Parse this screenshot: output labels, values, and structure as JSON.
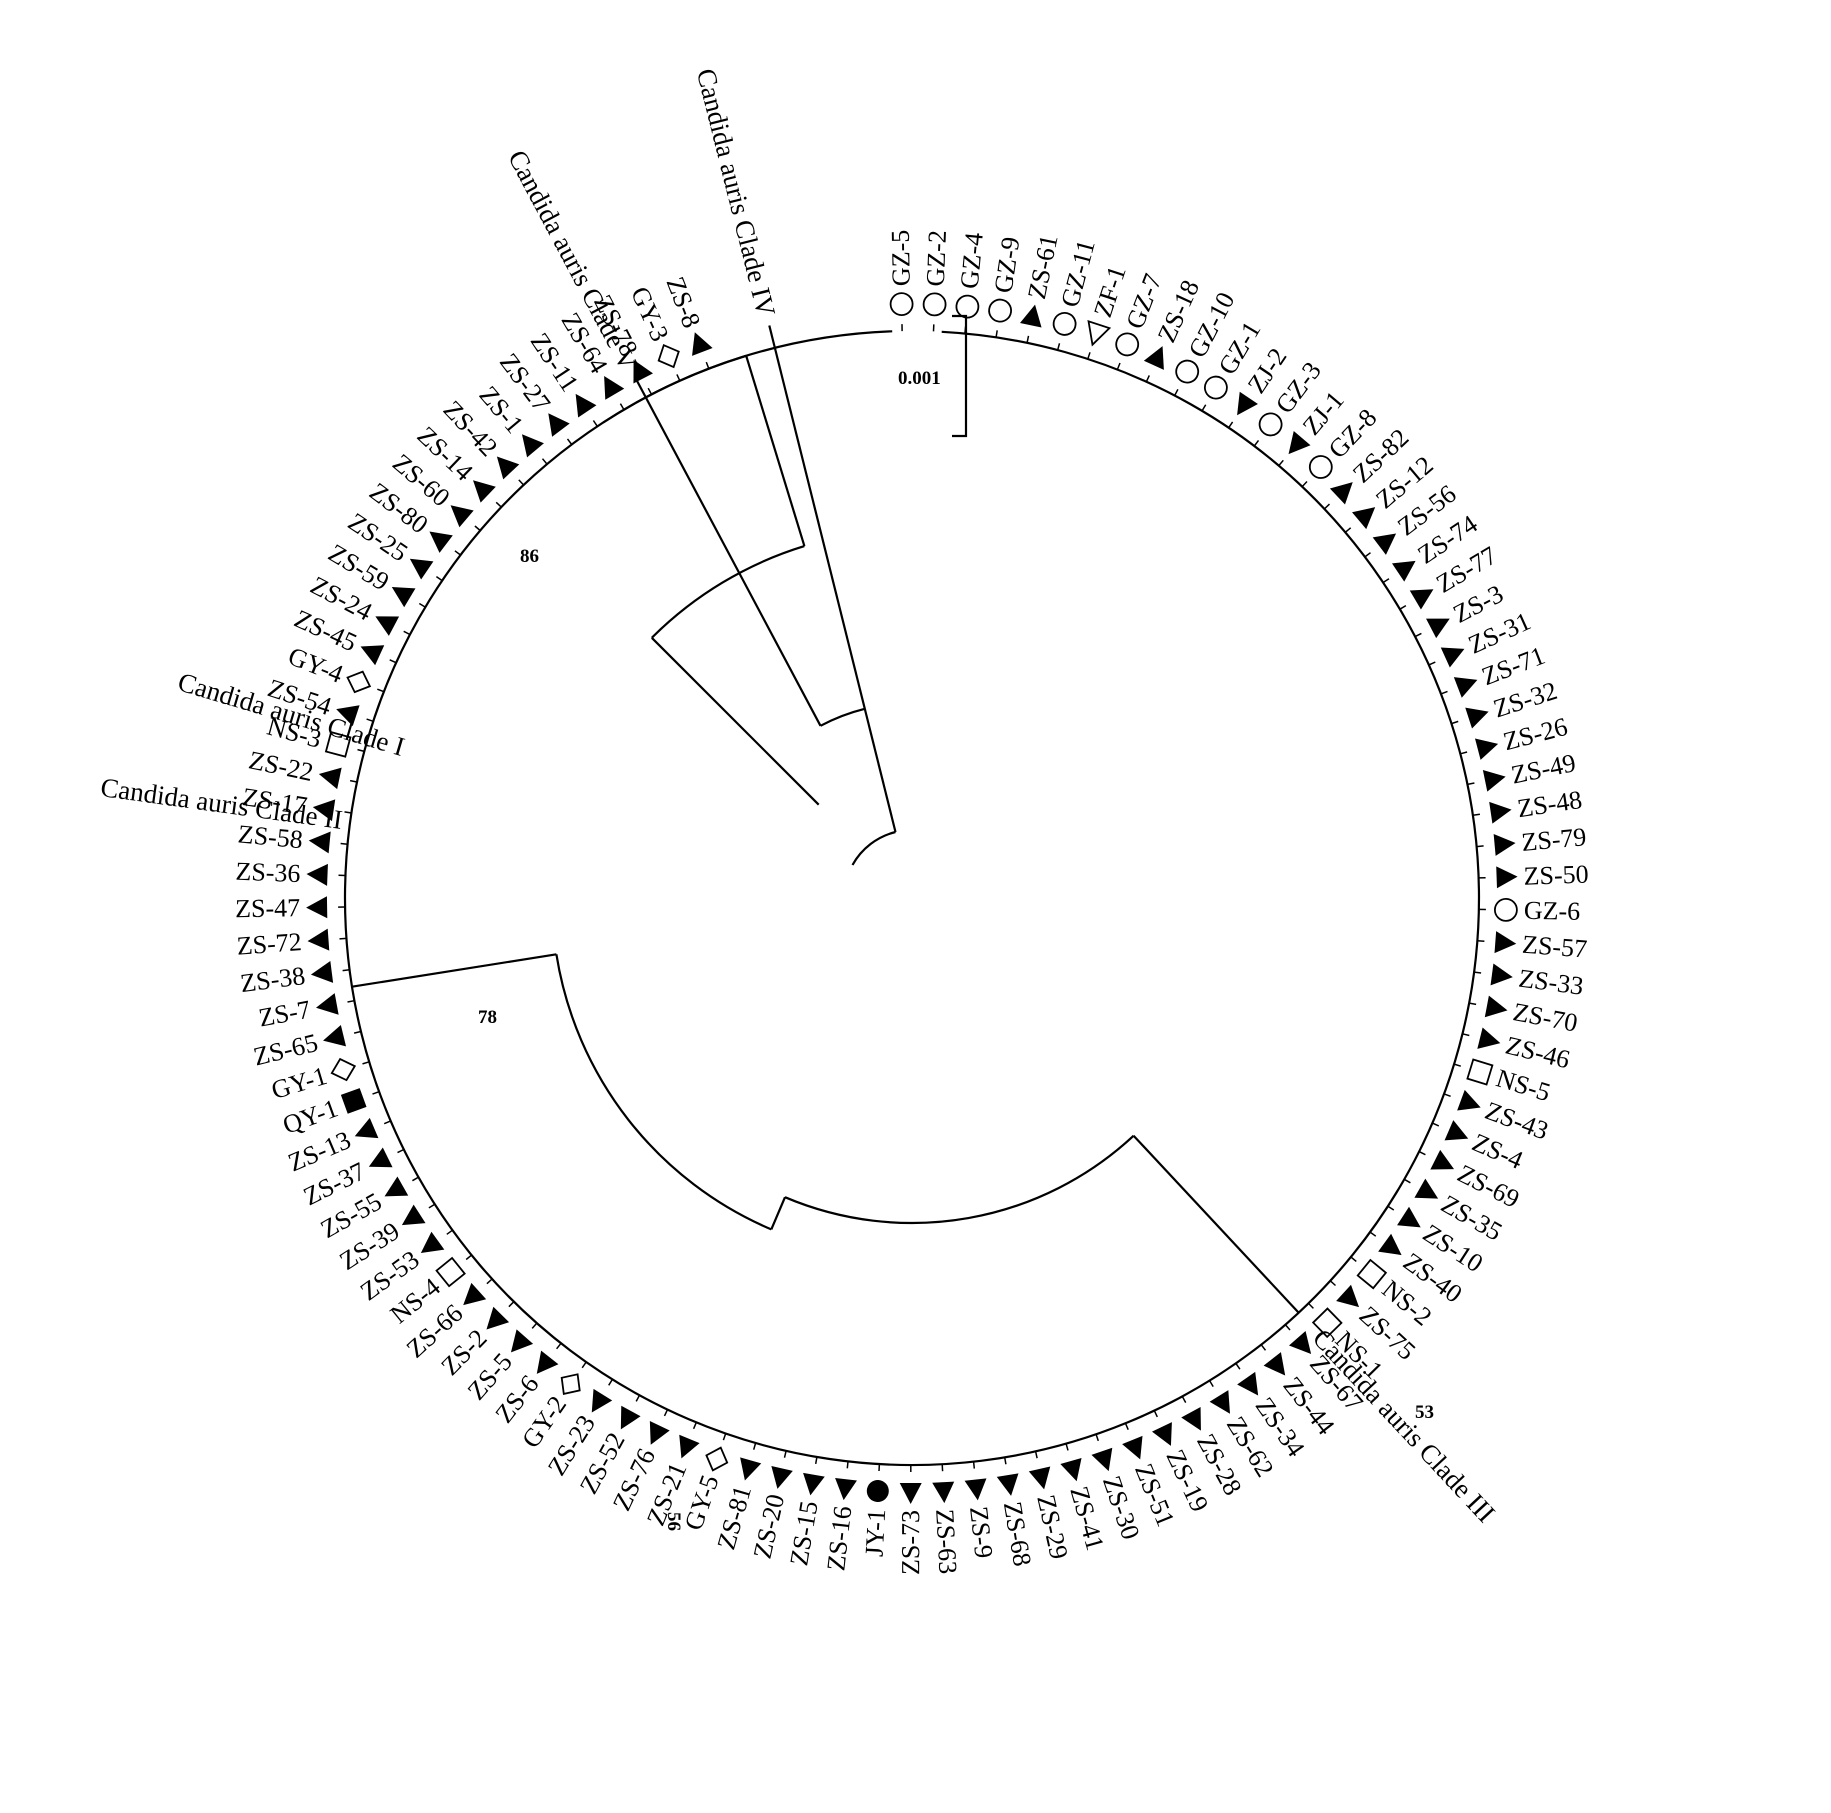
{
  "scale_label": "0.001",
  "bootstrap": [
    "86",
    "78",
    "56",
    "53"
  ],
  "clade_labels": {
    "clade5": "Candida auris Clade V",
    "clade4": "Candida auris Clade IV",
    "clade1": "Candida auris Clade I",
    "clade2": "Candida auris Clade II",
    "clade3": "Candida auris Clade III"
  },
  "leaves": [
    {
      "label": "GZ-5",
      "marker": "circle-open"
    },
    {
      "label": "GZ-2",
      "marker": "circle-open"
    },
    {
      "label": "GZ-4",
      "marker": "circle-open"
    },
    {
      "label": "GZ-9",
      "marker": "circle-open"
    },
    {
      "label": "ZS-61",
      "marker": "triangle-up-filled"
    },
    {
      "label": "GZ-11",
      "marker": "circle-open"
    },
    {
      "label": "ZF-1",
      "marker": "triangle-down-open"
    },
    {
      "label": "GZ-7",
      "marker": "circle-open"
    },
    {
      "label": "ZS-18",
      "marker": "triangle-up-filled"
    },
    {
      "label": "GZ-10",
      "marker": "circle-open"
    },
    {
      "label": "GZ-1",
      "marker": "circle-open"
    },
    {
      "label": "ZJ-2",
      "marker": "triangle-down-filled"
    },
    {
      "label": "GZ-3",
      "marker": "circle-open"
    },
    {
      "label": "ZJ-1",
      "marker": "triangle-down-filled"
    },
    {
      "label": "GZ-8",
      "marker": "circle-open"
    },
    {
      "label": "ZS-82",
      "marker": "triangle-up-filled"
    },
    {
      "label": "ZS-12",
      "marker": "triangle-up-filled"
    },
    {
      "label": "ZS-56",
      "marker": "triangle-up-filled"
    },
    {
      "label": "ZS-74",
      "marker": "triangle-up-filled"
    },
    {
      "label": "ZS-77",
      "marker": "triangle-up-filled"
    },
    {
      "label": "ZS-3",
      "marker": "triangle-up-filled"
    },
    {
      "label": "ZS-31",
      "marker": "triangle-up-filled"
    },
    {
      "label": "ZS-71",
      "marker": "triangle-up-filled"
    },
    {
      "label": "ZS-32",
      "marker": "triangle-up-filled"
    },
    {
      "label": "ZS-26",
      "marker": "triangle-up-filled"
    },
    {
      "label": "ZS-49",
      "marker": "triangle-up-filled"
    },
    {
      "label": "ZS-48",
      "marker": "triangle-up-filled"
    },
    {
      "label": "ZS-79",
      "marker": "triangle-up-filled"
    },
    {
      "label": "ZS-50",
      "marker": "triangle-up-filled"
    },
    {
      "label": "GZ-6",
      "marker": "circle-open"
    },
    {
      "label": "ZS-57",
      "marker": "triangle-up-filled"
    },
    {
      "label": "ZS-33",
      "marker": "triangle-up-filled"
    },
    {
      "label": "ZS-70",
      "marker": "triangle-up-filled"
    },
    {
      "label": "ZS-46",
      "marker": "triangle-up-filled"
    },
    {
      "label": "NS-5",
      "marker": "square-open"
    },
    {
      "label": "ZS-43",
      "marker": "triangle-up-filled"
    },
    {
      "label": "ZS-4",
      "marker": "triangle-up-filled"
    },
    {
      "label": "ZS-69",
      "marker": "triangle-up-filled"
    },
    {
      "label": "ZS-35",
      "marker": "triangle-up-filled"
    },
    {
      "label": "ZS-10",
      "marker": "triangle-up-filled"
    },
    {
      "label": "ZS-40",
      "marker": "triangle-up-filled"
    },
    {
      "label": "NS-2",
      "marker": "square-open"
    },
    {
      "label": "ZS-75",
      "marker": "triangle-up-filled"
    },
    {
      "label": "NS-1",
      "marker": "square-open"
    },
    {
      "label": "ZS-67",
      "marker": "triangle-up-filled"
    },
    {
      "label": "ZS-44",
      "marker": "triangle-up-filled"
    },
    {
      "label": "ZS-34",
      "marker": "triangle-up-filled"
    },
    {
      "label": "ZS-62",
      "marker": "triangle-up-filled"
    },
    {
      "label": "ZS-28",
      "marker": "triangle-up-filled"
    },
    {
      "label": "ZS-19",
      "marker": "triangle-up-filled"
    },
    {
      "label": "ZS-51",
      "marker": "triangle-up-filled"
    },
    {
      "label": "ZS-30",
      "marker": "triangle-up-filled"
    },
    {
      "label": "ZS-41",
      "marker": "triangle-up-filled"
    },
    {
      "label": "ZS-29",
      "marker": "triangle-up-filled"
    },
    {
      "label": "ZS-68",
      "marker": "triangle-up-filled"
    },
    {
      "label": "ZS-9",
      "marker": "triangle-up-filled"
    },
    {
      "label": "ZS-63",
      "marker": "triangle-up-filled"
    },
    {
      "label": "ZS-73",
      "marker": "triangle-up-filled"
    },
    {
      "label": "JY-1",
      "marker": "circle-filled"
    },
    {
      "label": "ZS-16",
      "marker": "triangle-up-filled"
    },
    {
      "label": "ZS-15",
      "marker": "triangle-up-filled"
    },
    {
      "label": "ZS-20",
      "marker": "triangle-up-filled"
    },
    {
      "label": "ZS-81",
      "marker": "triangle-up-filled"
    },
    {
      "label": "GY-5",
      "marker": "diamond-open"
    },
    {
      "label": "ZS-21",
      "marker": "triangle-up-filled"
    },
    {
      "label": "ZS-76",
      "marker": "triangle-up-filled"
    },
    {
      "label": "ZS-52",
      "marker": "triangle-up-filled"
    },
    {
      "label": "ZS-23",
      "marker": "triangle-up-filled"
    },
    {
      "label": "GY-2",
      "marker": "diamond-open"
    },
    {
      "label": "ZS-6",
      "marker": "triangle-up-filled"
    },
    {
      "label": "ZS-5",
      "marker": "triangle-up-filled"
    },
    {
      "label": "ZS-2",
      "marker": "triangle-up-filled"
    },
    {
      "label": "ZS-66",
      "marker": "triangle-up-filled"
    },
    {
      "label": "NS-4",
      "marker": "square-open"
    },
    {
      "label": "ZS-53",
      "marker": "triangle-up-filled"
    },
    {
      "label": "ZS-39",
      "marker": "triangle-up-filled"
    },
    {
      "label": "ZS-55",
      "marker": "triangle-up-filled"
    },
    {
      "label": "ZS-37",
      "marker": "triangle-up-filled"
    },
    {
      "label": "ZS-13",
      "marker": "triangle-up-filled"
    },
    {
      "label": "QY-1",
      "marker": "square-filled"
    },
    {
      "label": "GY-1",
      "marker": "diamond-open"
    },
    {
      "label": "ZS-65",
      "marker": "triangle-up-filled"
    },
    {
      "label": "ZS-7",
      "marker": "triangle-up-filled"
    },
    {
      "label": "ZS-38",
      "marker": "triangle-up-filled"
    },
    {
      "label": "ZS-72",
      "marker": "triangle-up-filled"
    },
    {
      "label": "ZS-47",
      "marker": "triangle-up-filled"
    },
    {
      "label": "ZS-36",
      "marker": "triangle-up-filled"
    },
    {
      "label": "ZS-58",
      "marker": "triangle-up-filled"
    },
    {
      "label": "ZS-17",
      "marker": "triangle-up-filled"
    },
    {
      "label": "ZS-22",
      "marker": "triangle-up-filled"
    },
    {
      "label": "NS-3",
      "marker": "square-open"
    },
    {
      "label": "ZS-54",
      "marker": "triangle-up-filled"
    },
    {
      "label": "GY-4",
      "marker": "diamond-open"
    },
    {
      "label": "ZS-45",
      "marker": "triangle-up-filled"
    },
    {
      "label": "ZS-24",
      "marker": "triangle-up-filled"
    },
    {
      "label": "ZS-59",
      "marker": "triangle-up-filled"
    },
    {
      "label": "ZS-25",
      "marker": "triangle-up-filled"
    },
    {
      "label": "ZS-80",
      "marker": "triangle-up-filled"
    },
    {
      "label": "ZS-60",
      "marker": "triangle-up-filled"
    },
    {
      "label": "ZS-14",
      "marker": "triangle-up-filled"
    },
    {
      "label": "ZS-42",
      "marker": "triangle-up-filled"
    },
    {
      "label": "ZS-1",
      "marker": "triangle-up-filled"
    },
    {
      "label": "ZS-27",
      "marker": "triangle-up-filled"
    },
    {
      "label": "ZS-11",
      "marker": "triangle-up-filled"
    },
    {
      "label": "ZS-64",
      "marker": "triangle-up-filled"
    },
    {
      "label": "ZS-78",
      "marker": "triangle-up-filled"
    },
    {
      "label": "GY-3",
      "marker": "diamond-open"
    },
    {
      "label": "ZS-8",
      "marker": "triangle-up-filled"
    }
  ]
}
